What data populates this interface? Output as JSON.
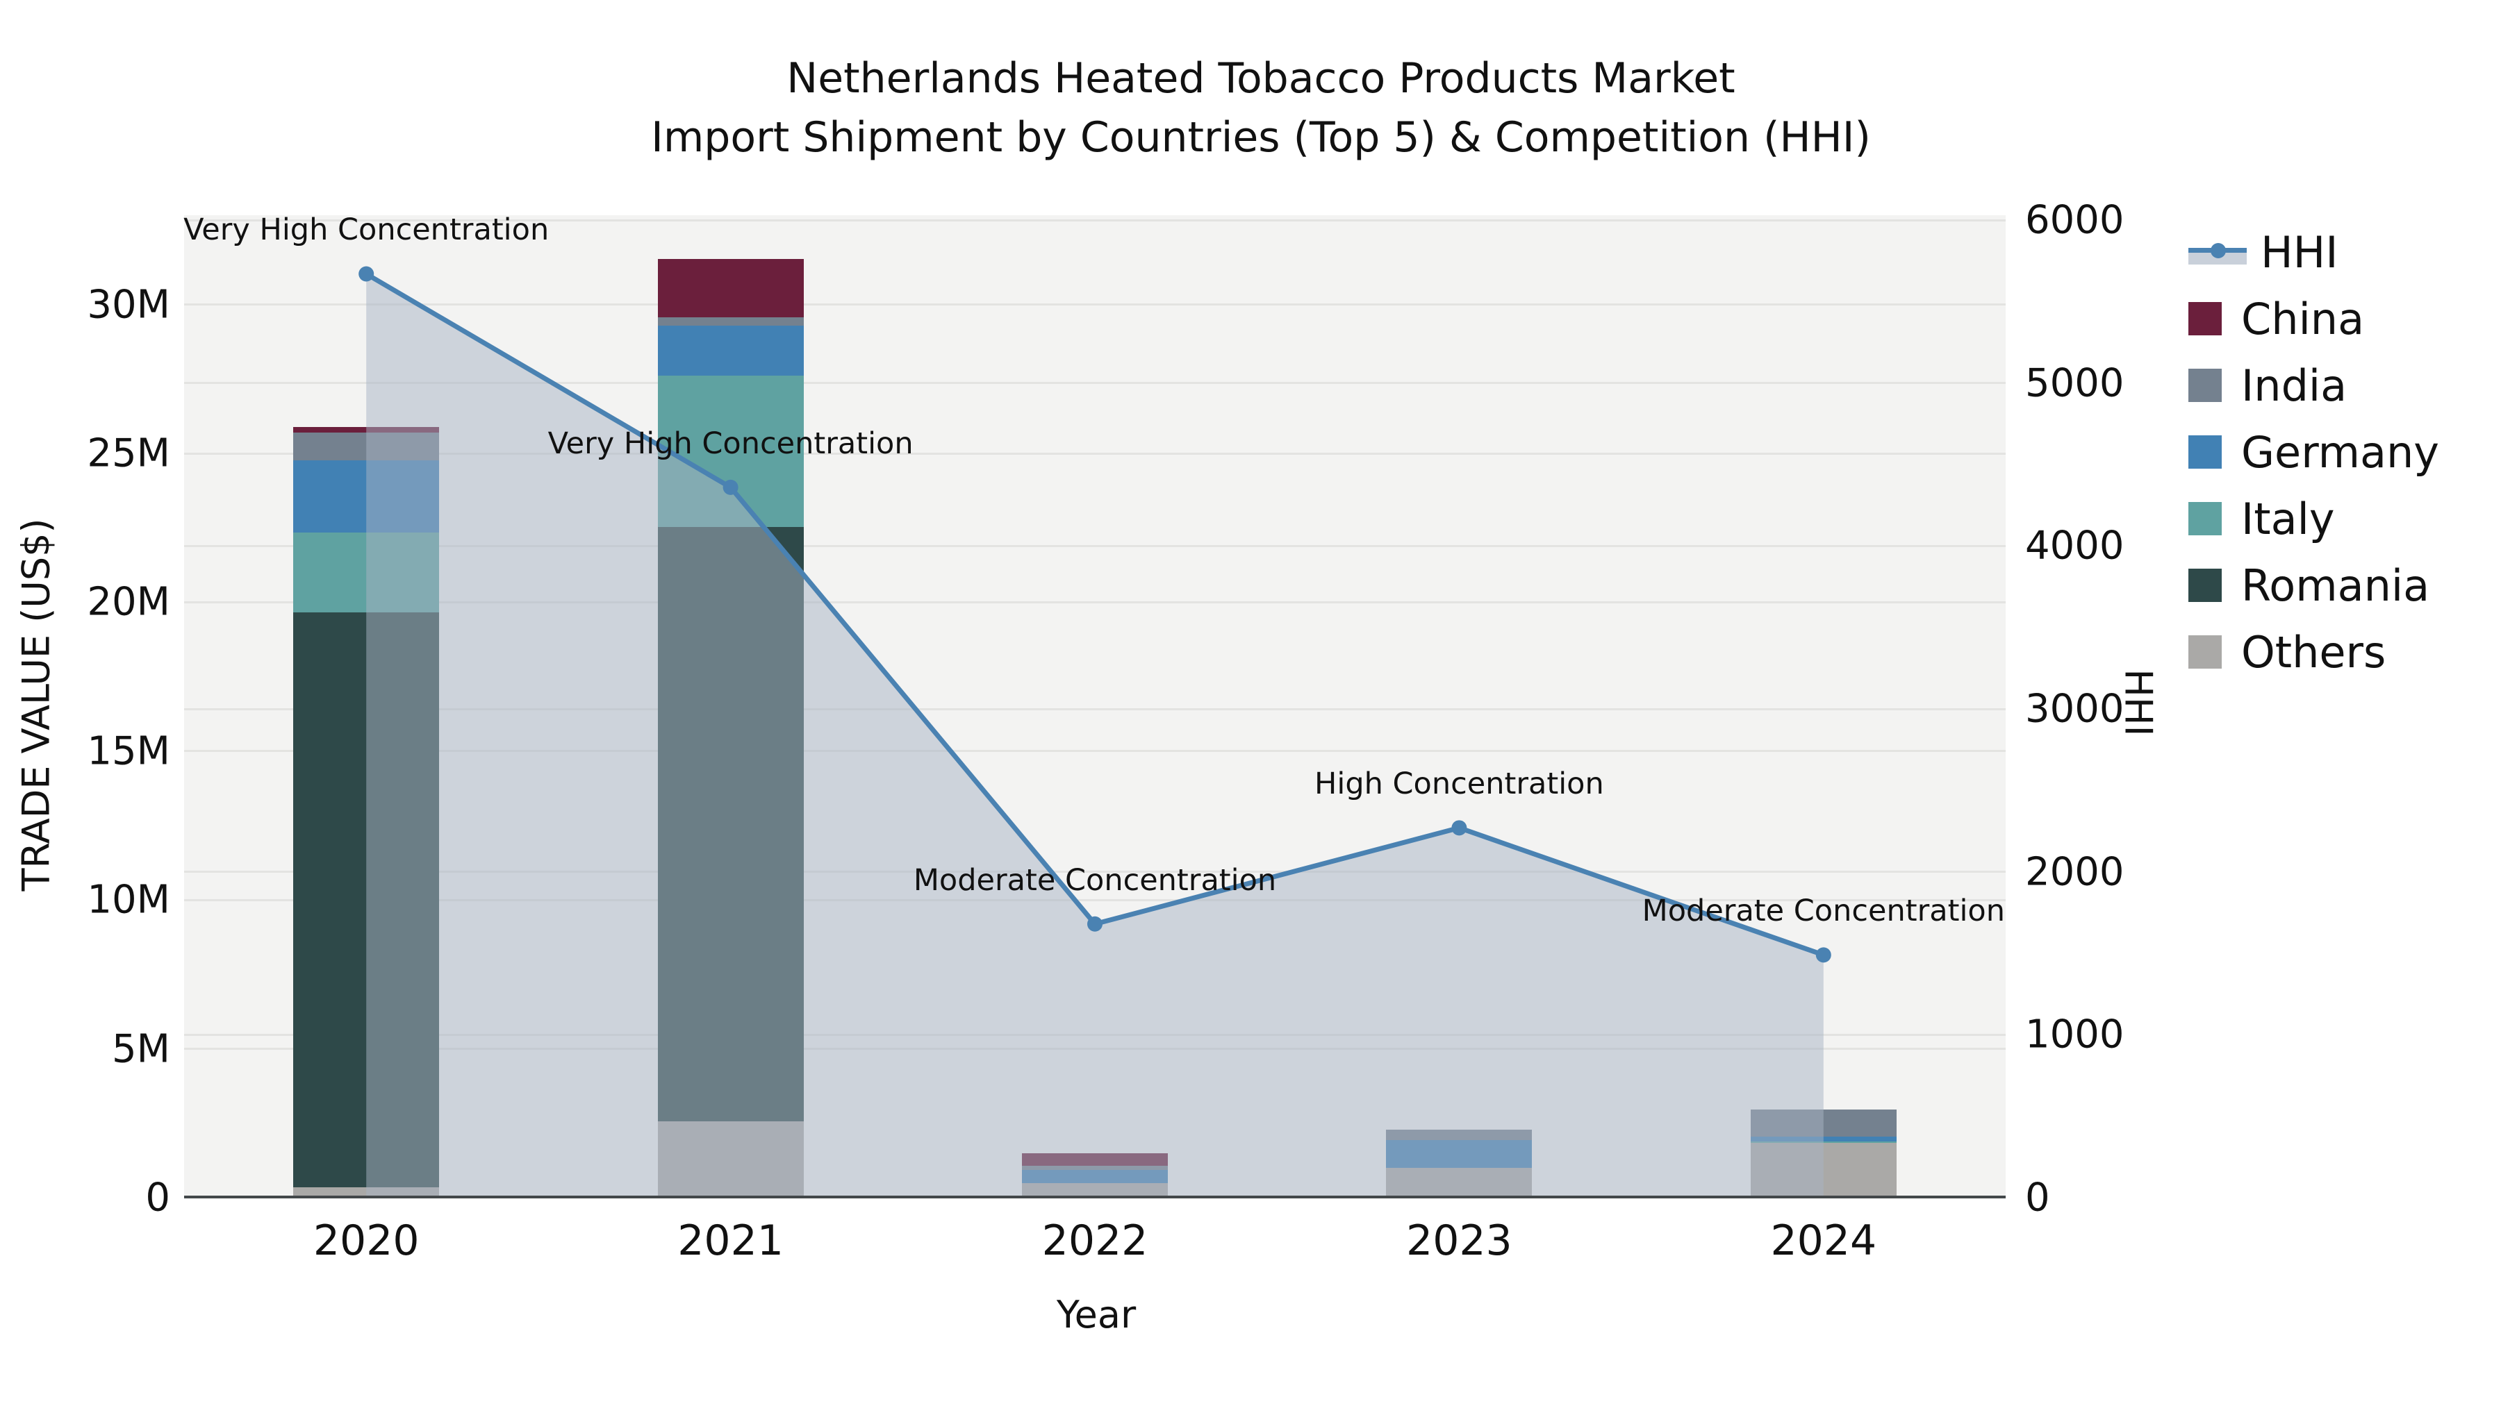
{
  "title": {
    "line1": "Netherlands Heated Tobacco Products Market",
    "line2": "Import Shipment by Countries (Top 5) & Competition (HHI)"
  },
  "axes": {
    "x": {
      "label": "Year"
    },
    "left": {
      "label": "TRADE VALUE (US$)",
      "ticks": [
        {
          "value": 0,
          "label": "0"
        },
        {
          "value": 5000000,
          "label": "5M"
        },
        {
          "value": 10000000,
          "label": "10M"
        },
        {
          "value": 15000000,
          "label": "15M"
        },
        {
          "value": 20000000,
          "label": "20M"
        },
        {
          "value": 25000000,
          "label": "25M"
        },
        {
          "value": 30000000,
          "label": "30M"
        }
      ]
    },
    "right": {
      "label": "HHI",
      "ticks": [
        {
          "value": 0,
          "label": "0"
        },
        {
          "value": 1000,
          "label": "1000"
        },
        {
          "value": 2000,
          "label": "2000"
        },
        {
          "value": 3000,
          "label": "3000"
        },
        {
          "value": 4000,
          "label": "4000"
        },
        {
          "value": 5000,
          "label": "5000"
        },
        {
          "value": 6000,
          "label": "6000"
        }
      ]
    }
  },
  "legend": {
    "position": "right",
    "items": [
      {
        "label": "HHI",
        "type": "line",
        "color": "#4a82b2",
        "patch_color": "#c9d0da"
      },
      {
        "label": "China",
        "type": "bar",
        "color": "#6b1f3c"
      },
      {
        "label": "India",
        "type": "bar",
        "color": "#74818f"
      },
      {
        "label": "Germany",
        "type": "bar",
        "color": "#4181b4"
      },
      {
        "label": "Italy",
        "type": "bar",
        "color": "#5fa2a1"
      },
      {
        "label": "Romania",
        "type": "bar",
        "color": "#2e4949"
      },
      {
        "label": "Others",
        "type": "bar",
        "color": "#aaa9a7"
      }
    ]
  },
  "chart_data": {
    "type": "composite",
    "subtype": "stacked-bar-with-line-area",
    "categories": [
      "2020",
      "2021",
      "2022",
      "2023",
      "2024"
    ],
    "bar_unit": "US$ millions",
    "bar_stack_order_bottom_to_top": [
      "Others",
      "Romania",
      "Italy",
      "Germany",
      "India",
      "China"
    ],
    "series": [
      {
        "name": "China",
        "type": "bar",
        "color": "#6b1f3c",
        "values_musd": [
          0.19,
          1.96,
          0.42,
          0,
          0
        ]
      },
      {
        "name": "India",
        "type": "bar",
        "color": "#74818f",
        "values_musd": [
          0.93,
          0.28,
          0.14,
          0.35,
          0.91
        ]
      },
      {
        "name": "Germany",
        "type": "bar",
        "color": "#4181b4",
        "values_musd": [
          2.42,
          1.68,
          0.44,
          0.93,
          0.16
        ]
      },
      {
        "name": "Italy",
        "type": "bar",
        "color": "#5fa2a1",
        "values_musd": [
          2.7,
          5.08,
          0,
          0,
          0.05
        ]
      },
      {
        "name": "Romania",
        "type": "bar",
        "color": "#2e4949",
        "values_musd": [
          19.3,
          19.98,
          0,
          0,
          0
        ]
      },
      {
        "name": "Others",
        "type": "bar",
        "color": "#aaa9a7",
        "values_musd": [
          0.35,
          2.56,
          0.49,
          1.0,
          1.84
        ]
      }
    ],
    "line_series": {
      "name": "HHI",
      "type": "line",
      "axis": "right",
      "color": "#4a82b2",
      "area_fill": "rgba(168,180,196,0.5)",
      "values": [
        5670,
        4360,
        1680,
        2270,
        1490
      ]
    },
    "annotations": [
      {
        "category": "2020",
        "text": "Very High Concentration"
      },
      {
        "category": "2021",
        "text": "Very High Concentration"
      },
      {
        "category": "2022",
        "text": "Moderate Concentration"
      },
      {
        "category": "2023",
        "text": "High Concentration"
      },
      {
        "category": "2024",
        "text": "Moderate Concentration"
      }
    ],
    "ylim_left": [
      0,
      33000000
    ],
    "ylim_right": [
      0,
      6030
    ],
    "grid": true,
    "legend_position": "right"
  }
}
